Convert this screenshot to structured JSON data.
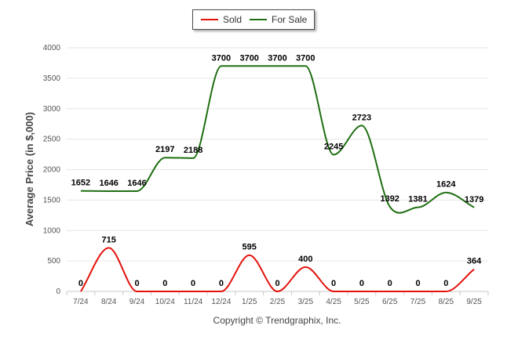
{
  "chart_data": {
    "type": "line",
    "title": "",
    "xlabel": "",
    "ylabel": "Average Price (in $,000)",
    "ylim": [
      0,
      4000
    ],
    "yticks": [
      0,
      500,
      1000,
      1500,
      2000,
      2500,
      3000,
      3500,
      4000
    ],
    "grid": true,
    "legend_position": "top-center",
    "categories": [
      "7/24",
      "8/24",
      "9/24",
      "10/24",
      "11/24",
      "12/24",
      "1/25",
      "2/25",
      "3/25",
      "4/25",
      "5/25",
      "6/25",
      "7/25",
      "8/25",
      "9/25"
    ],
    "series": [
      {
        "name": "Sold",
        "color": "#e3120b",
        "values": [
          0,
          715,
          0,
          0,
          0,
          0,
          595,
          0,
          400,
          0,
          0,
          0,
          0,
          0,
          364
        ]
      },
      {
        "name": "For Sale",
        "color": "#1f6e12",
        "values": [
          1652,
          1646,
          1646,
          2197,
          2188,
          3700,
          3700,
          3700,
          3700,
          2245,
          2723,
          1392,
          1381,
          1624,
          1379
        ]
      }
    ],
    "footer": "Copyright © Trendgraphix, Inc."
  }
}
